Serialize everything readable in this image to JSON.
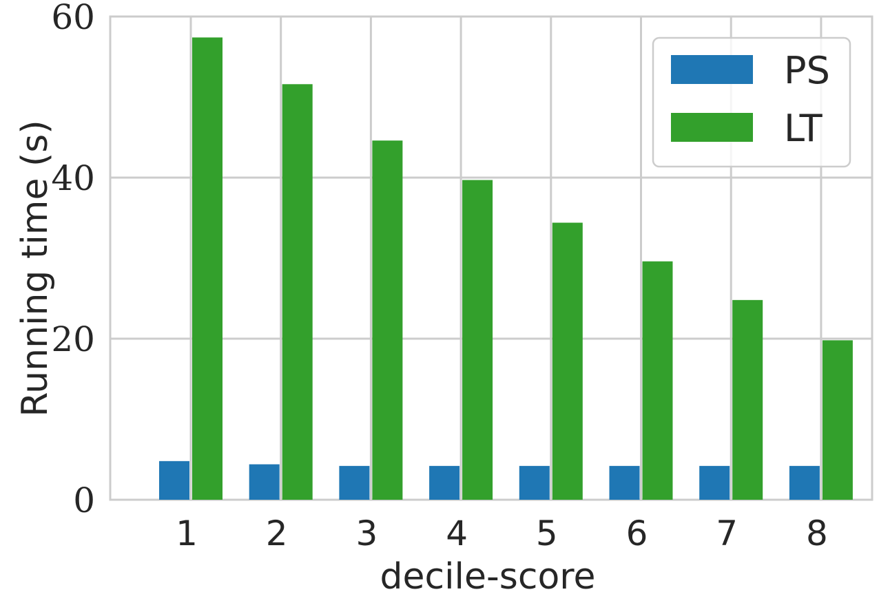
{
  "chart_data": {
    "type": "bar",
    "xlabel": "decile-score",
    "ylabel": "Running time (s)",
    "categories": [
      "1",
      "2",
      "3",
      "4",
      "5",
      "6",
      "7",
      "8"
    ],
    "series": [
      {
        "name": "PS",
        "color": "#1f77b4",
        "values": [
          4.8,
          4.4,
          4.2,
          4.2,
          4.2,
          4.2,
          4.2,
          4.2
        ]
      },
      {
        "name": "LT",
        "color": "#33a02c",
        "values": [
          57.4,
          51.6,
          44.6,
          39.7,
          34.4,
          29.6,
          24.8,
          19.8
        ]
      }
    ],
    "ylim": [
      0,
      60
    ],
    "yticks": [
      "0",
      "20",
      "40",
      "60"
    ],
    "grid": true,
    "legend_position": "top-right"
  }
}
